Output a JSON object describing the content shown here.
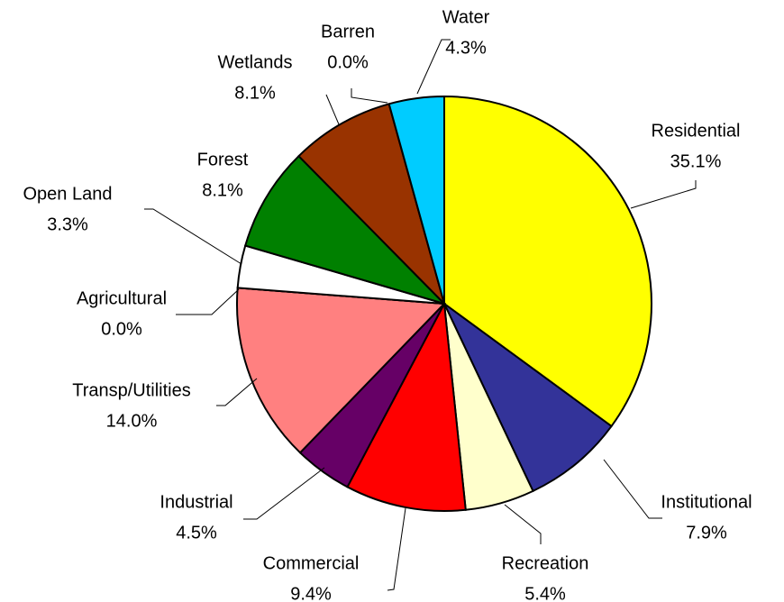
{
  "chart_data": {
    "type": "pie",
    "categories": [
      "Residential",
      "Institutional",
      "Recreation",
      "Commercial",
      "Industrial",
      "Transp/Utilities",
      "Agricultural",
      "Open Land",
      "Forest",
      "Wetlands",
      "Barren",
      "Water"
    ],
    "values": [
      35.1,
      7.9,
      5.4,
      9.4,
      4.5,
      14.0,
      0.0,
      3.3,
      8.1,
      8.1,
      0.0,
      4.3
    ],
    "value_labels": [
      "35.1%",
      "7.9%",
      "5.4%",
      "9.4%",
      "4.5%",
      "14.0%",
      "0.0%",
      "3.3%",
      "8.1%",
      "8.1%",
      "0.0%",
      "4.3%"
    ],
    "colors": [
      "#ffff00",
      "#333399",
      "#ffffcc",
      "#ff0000",
      "#660066",
      "#ff8080",
      "#ffffff",
      "#ffffff",
      "#008000",
      "#993300",
      "#ffffff",
      "#00ccff"
    ]
  }
}
